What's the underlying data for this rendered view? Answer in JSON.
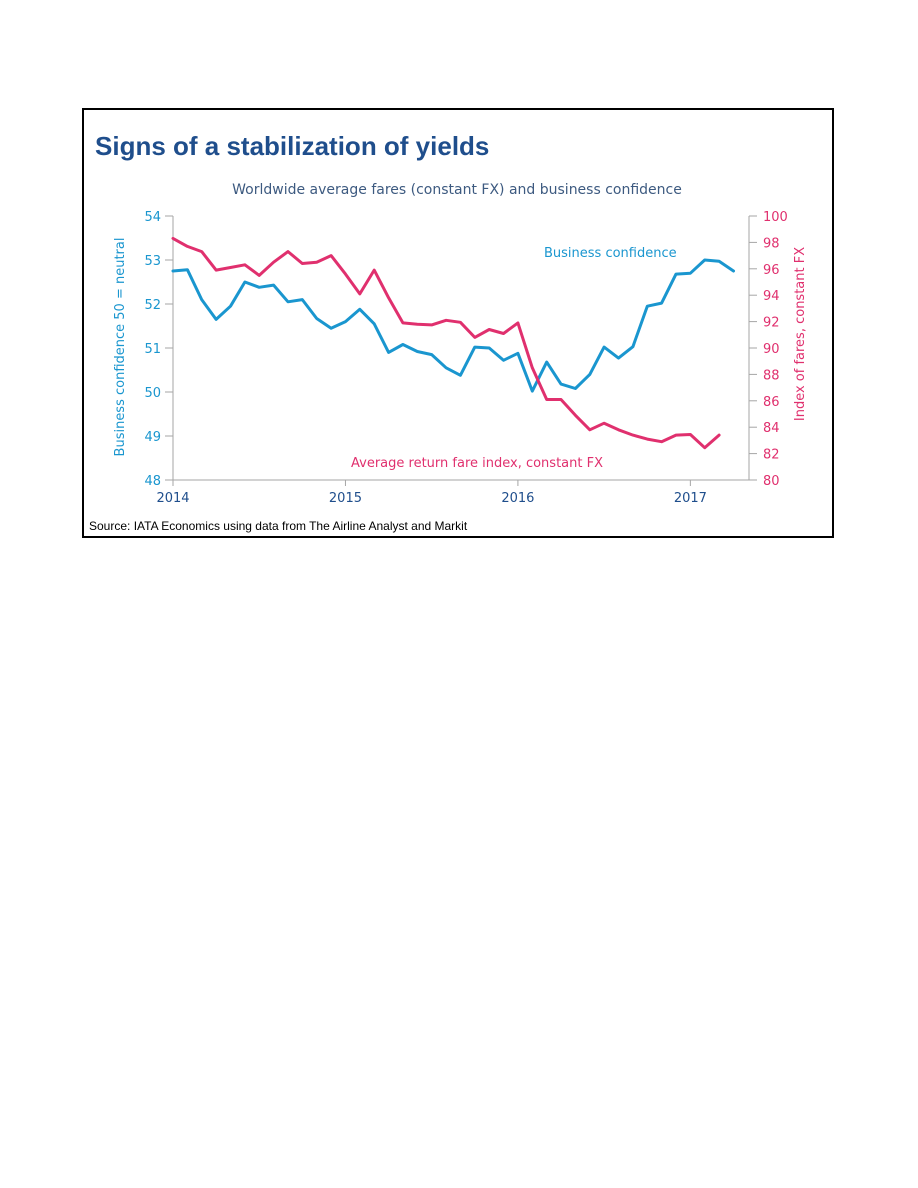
{
  "colors": {
    "title": "#1f4e8c",
    "subtitle": "#3d5a80",
    "business_confidence": "#1a96cf",
    "fare_index": "#e0306e",
    "axis": "#a6a6a6",
    "frame": "#000000",
    "source": "#000000"
  },
  "chart_data": {
    "type": "line",
    "title": "Signs of a stabilization of yields",
    "subtitle": "Worldwide average fares (constant FX) and business confidence",
    "x_ticks": [
      "2014",
      "2015",
      "2016",
      "2017"
    ],
    "left_axis": {
      "label": "Business confidence 50 = neutral",
      "ylim": [
        48,
        54
      ],
      "ticks": [
        "48",
        "49",
        "50",
        "51",
        "52",
        "53",
        "54"
      ]
    },
    "right_axis": {
      "label": "Index of fares, constant FX",
      "ylim": [
        80,
        100
      ],
      "ticks": [
        "80",
        "82",
        "84",
        "86",
        "88",
        "90",
        "92",
        "94",
        "96",
        "98",
        "100"
      ]
    },
    "grid": false,
    "series": [
      {
        "name": "Business confidence",
        "axis": "left",
        "x": [
          "2014-01",
          "2014-02",
          "2014-03",
          "2014-04",
          "2014-05",
          "2014-06",
          "2014-07",
          "2014-08",
          "2014-09",
          "2014-10",
          "2014-11",
          "2014-12",
          "2015-01",
          "2015-02",
          "2015-03",
          "2015-04",
          "2015-05",
          "2015-06",
          "2015-07",
          "2015-08",
          "2015-09",
          "2015-10",
          "2015-11",
          "2015-12",
          "2016-01",
          "2016-02",
          "2016-03",
          "2016-04",
          "2016-05",
          "2016-06",
          "2016-07",
          "2016-08",
          "2016-09",
          "2016-10",
          "2016-11",
          "2016-12",
          "2017-01",
          "2017-02",
          "2017-03",
          "2017-04"
        ],
        "values": [
          52.75,
          52.78,
          52.1,
          51.65,
          51.95,
          52.5,
          52.38,
          52.43,
          52.05,
          52.1,
          51.67,
          51.45,
          51.6,
          51.88,
          51.55,
          50.9,
          51.08,
          50.92,
          50.85,
          50.55,
          50.38,
          51.02,
          51.0,
          50.72,
          50.88,
          50.02,
          50.68,
          50.18,
          50.08,
          50.4,
          51.02,
          50.77,
          51.03,
          51.95,
          52.02,
          52.68,
          52.7,
          53.0,
          52.97,
          52.75
        ]
      },
      {
        "name": "Average return fare index, constant FX",
        "axis": "right",
        "x": [
          "2014-01",
          "2014-02",
          "2014-03",
          "2014-04",
          "2014-05",
          "2014-06",
          "2014-07",
          "2014-08",
          "2014-09",
          "2014-10",
          "2014-11",
          "2014-12",
          "2015-01",
          "2015-02",
          "2015-03",
          "2015-04",
          "2015-05",
          "2015-06",
          "2015-07",
          "2015-08",
          "2015-09",
          "2015-10",
          "2015-11",
          "2015-12",
          "2016-01",
          "2016-02",
          "2016-03",
          "2016-04",
          "2016-05",
          "2016-06",
          "2016-07",
          "2016-08",
          "2016-09",
          "2016-10",
          "2016-11",
          "2016-12",
          "2017-01",
          "2017-02",
          "2017-03"
        ],
        "values": [
          98.3,
          97.7,
          97.3,
          95.9,
          96.1,
          96.3,
          95.5,
          96.5,
          97.3,
          96.4,
          96.5,
          97.0,
          95.6,
          94.1,
          95.9,
          93.8,
          91.9,
          91.8,
          91.75,
          92.1,
          91.95,
          90.8,
          91.4,
          91.1,
          91.9,
          88.5,
          86.1,
          86.1,
          84.9,
          83.8,
          84.3,
          83.8,
          83.4,
          83.1,
          82.9,
          83.4,
          83.45,
          82.45,
          83.4
        ]
      }
    ],
    "annotations": [
      {
        "text": "Business confidence",
        "series": "Business confidence"
      },
      {
        "text": "Average return fare index, constant FX",
        "series": "Average return fare index, constant FX"
      }
    ],
    "source": "Source: IATA Economics using data from The Airline Analyst and Markit"
  }
}
